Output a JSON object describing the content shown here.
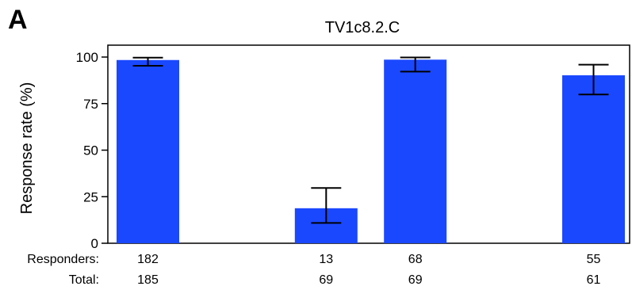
{
  "panel_label": "A",
  "chart_data": {
    "type": "bar",
    "title": "TV1c8.2.C",
    "ylabel": "Response rate (%)",
    "xlabel": "",
    "ylim": [
      0,
      100
    ],
    "yticks": [
      0,
      25,
      50,
      75,
      100
    ],
    "grid": false,
    "legend": "none",
    "bar_color": "#1a48ff",
    "slots": 6,
    "bars": [
      {
        "slot": 0,
        "value": 98.4,
        "err_low": 95.3,
        "err_high": 99.7
      },
      {
        "slot": 2,
        "value": 18.8,
        "err_low": 10.9,
        "err_high": 29.7
      },
      {
        "slot": 3,
        "value": 98.6,
        "err_low": 92.2,
        "err_high": 99.8
      },
      {
        "slot": 5,
        "value": 90.2,
        "err_low": 79.9,
        "err_high": 95.9
      }
    ],
    "row_labels": {
      "responders": "Responders:",
      "total": "Total:"
    },
    "responders": [
      "182",
      "13",
      "68",
      "55"
    ],
    "totals": [
      "185",
      "69",
      "69",
      "61"
    ]
  }
}
